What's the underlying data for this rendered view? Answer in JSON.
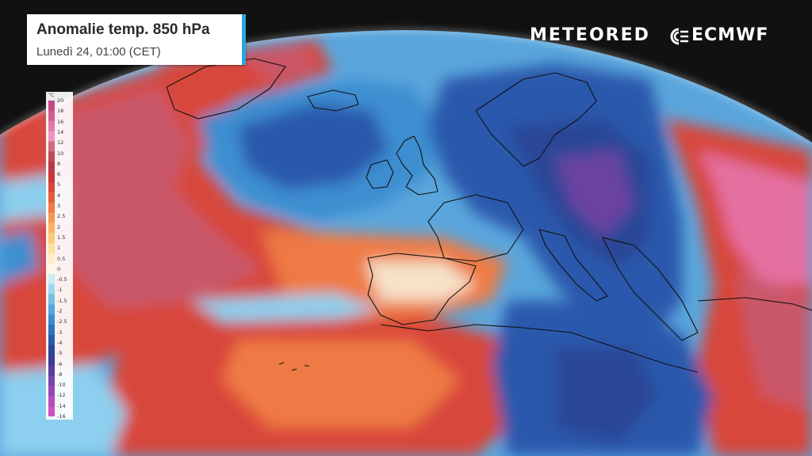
{
  "header": {
    "title": "Anomalie temp. 850 hPa",
    "subtitle": "Lunedì 24, 01:00 (CET)",
    "accent_color": "#2aa7e0"
  },
  "logos": {
    "meteored": "METEORED",
    "ecmwf": "ECMWF",
    "ecmwf_icon": "ecmwf-swirl-icon"
  },
  "legend": {
    "unit": "°C",
    "ticks": [
      "20",
      "18",
      "16",
      "14",
      "12",
      "10",
      "8",
      "6",
      "5",
      "4",
      "3",
      "2.5",
      "2",
      "1.5",
      "1",
      "0.5",
      "0",
      "-0.5",
      "-1",
      "-1.5",
      "-2",
      "-2.5",
      "-3",
      "-4",
      "-5",
      "-6",
      "-8",
      "-10",
      "-12",
      "-14",
      "-16"
    ],
    "colors": [
      "#c24a83",
      "#cf5e93",
      "#e07aa8",
      "#ee96c0",
      "#d26a84",
      "#c04a5b",
      "#b83a47",
      "#c8383a",
      "#d8463a",
      "#e55d3c",
      "#ef7a45",
      "#f59a55",
      "#f8b466",
      "#f9cc7e",
      "#fae19e",
      "#fbf0c4",
      "#fbf8e8",
      "#ccecf6",
      "#9ed8ef",
      "#74c2e6",
      "#52a8dc",
      "#3c8ed0",
      "#2f72c0",
      "#2a59ac",
      "#2a4696",
      "#3a3d92",
      "#5a3f9a",
      "#7a44a6",
      "#9848b0",
      "#b64cba",
      "#cc52c2"
    ]
  },
  "map_layer": {
    "variable": "temperature-anomaly-850hpa",
    "palette": {
      "warm_strong": "#c9586a",
      "warm_pink": "#e46fa0",
      "warm": "#d8463a",
      "mild": "#ef7a45",
      "neutral": "#f6e2c8",
      "cool": "#8ccfee",
      "cold": "#3c8ed0",
      "very_cold": "#2a4696",
      "extreme_cold": "#6a42a2",
      "coastline": "#111111",
      "space": "#111111"
    }
  }
}
